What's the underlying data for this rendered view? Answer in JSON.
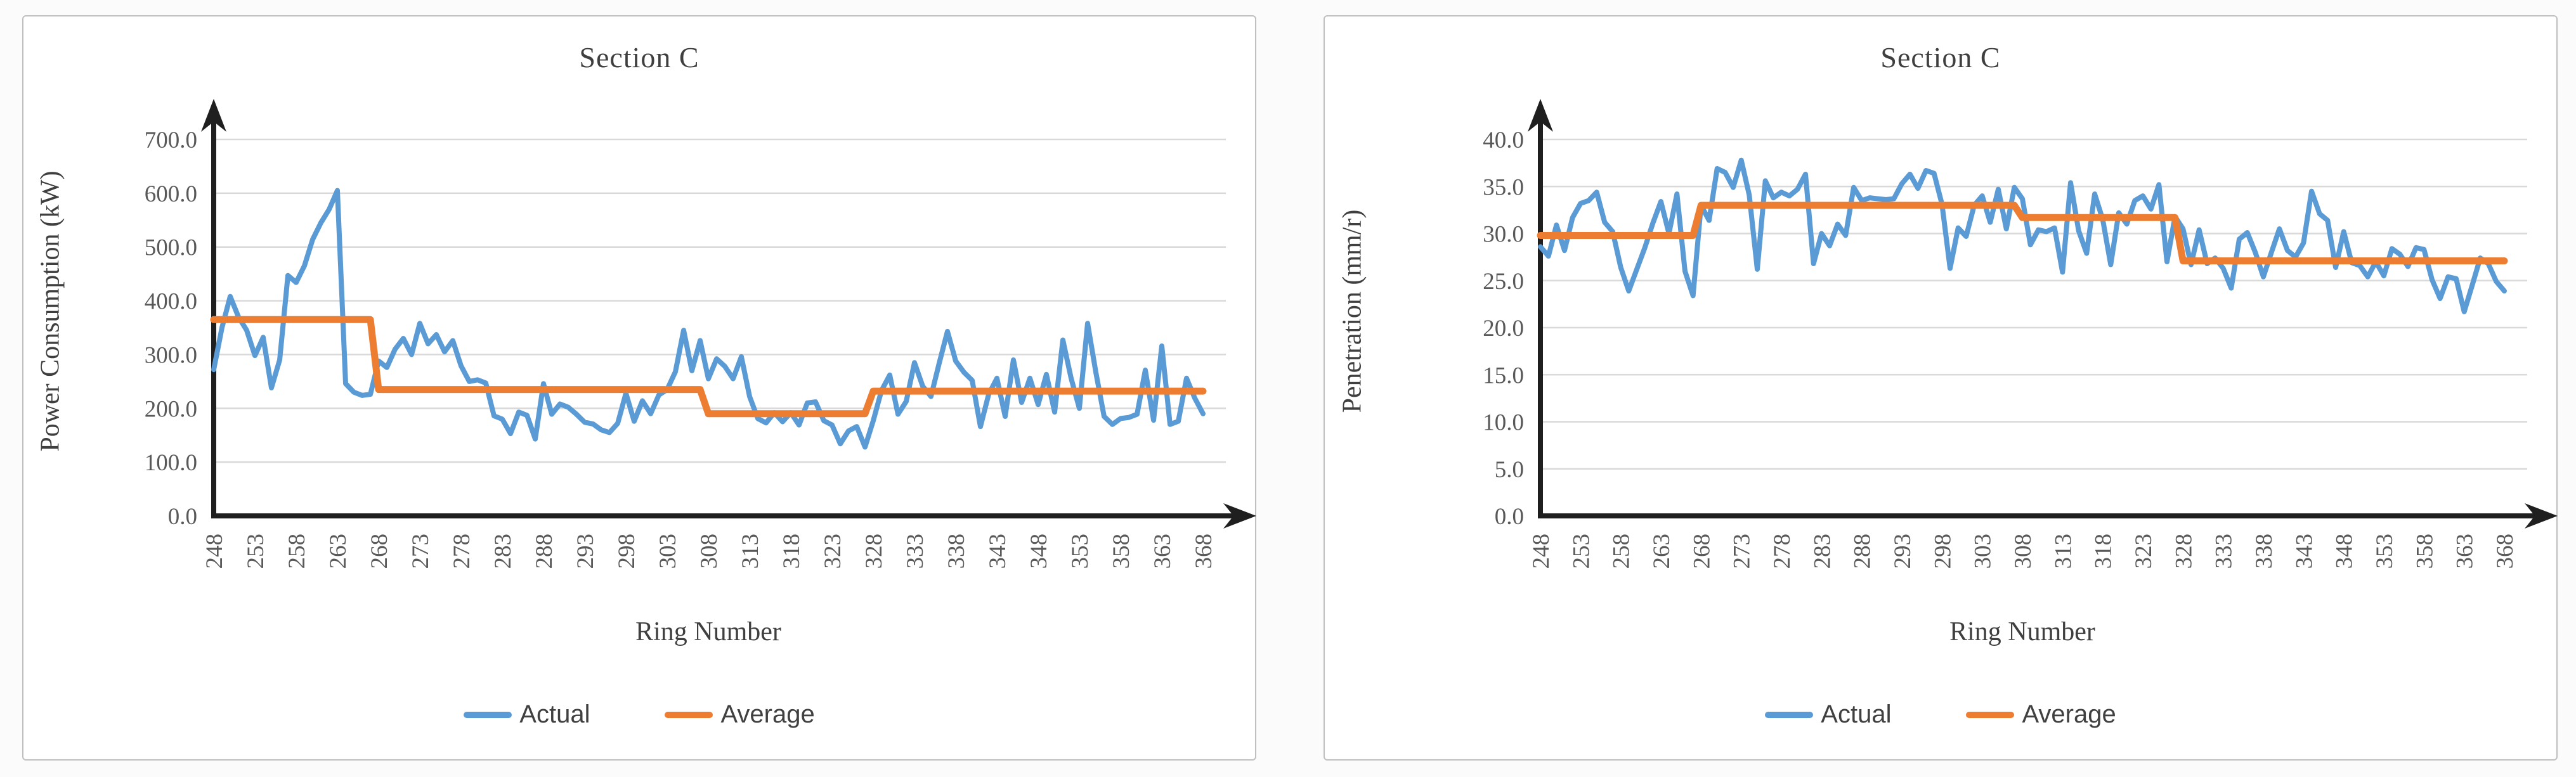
{
  "colors": {
    "actual": "#5B9BD5",
    "average": "#ED7D31",
    "gridline": "#D9D9D9",
    "axis": "#1F1F1F",
    "tick_text": "#595959",
    "title_text": "#3F3F3F",
    "panel_border": "#BFBFBF",
    "panel_background": "#FFFFFF"
  },
  "chart_data": [
    {
      "type": "line",
      "title": "Section C",
      "xlabel": "Ring Number",
      "ylabel": "Power Consumption (kW)",
      "grid": true,
      "legend_position": "bottom",
      "x_start": 248,
      "x_end": 368,
      "x_tick_step": 5,
      "x_tick_labels": [
        "248",
        "253",
        "258",
        "263",
        "268",
        "273",
        "278",
        "283",
        "288",
        "293",
        "298",
        "303",
        "308",
        "313",
        "318",
        "323",
        "328",
        "333",
        "338",
        "343",
        "348",
        "353",
        "358",
        "363",
        "368"
      ],
      "ylim": [
        0,
        700
      ],
      "y_tick_labels": [
        "0.0",
        "100.0",
        "200.0",
        "300.0",
        "400.0",
        "500.0",
        "600.0",
        "700.0"
      ],
      "series": [
        {
          "name": "Actual",
          "color": "#5B9BD5",
          "values": [
            272,
            350,
            408,
            370,
            345,
            298,
            332,
            238,
            290,
            447,
            434,
            465,
            514,
            545,
            570,
            605,
            246,
            230,
            224,
            226,
            288,
            276,
            310,
            330,
            300,
            358,
            320,
            337,
            305,
            326,
            279,
            250,
            253,
            247,
            186,
            180,
            153,
            193,
            187,
            143,
            246,
            189,
            208,
            202,
            189,
            174,
            171,
            160,
            155,
            172,
            228,
            176,
            214,
            190,
            225,
            235,
            268,
            345,
            270,
            326,
            255,
            292,
            278,
            255,
            296,
            222,
            181,
            173,
            192,
            175,
            192,
            169,
            210,
            212,
            177,
            169,
            134,
            158,
            166,
            128,
            177,
            233,
            262,
            189,
            213,
            285,
            241,
            222,
            284,
            343,
            288,
            267,
            252,
            166,
            226,
            256,
            185,
            290,
            211,
            256,
            207,
            263,
            193,
            327,
            256,
            200,
            358,
            267,
            185,
            170,
            181,
            183,
            189,
            271,
            178,
            316,
            170,
            176,
            256,
            219,
            190
          ]
        },
        {
          "name": "Average",
          "color": "#ED7D31",
          "segments": [
            {
              "start_ring": 248,
              "end_ring": 267,
              "value": 365
            },
            {
              "start_ring": 268,
              "end_ring": 307,
              "value": 235
            },
            {
              "start_ring": 308,
              "end_ring": 327,
              "value": 190
            },
            {
              "start_ring": 328,
              "end_ring": 368,
              "value": 232
            }
          ]
        }
      ]
    },
    {
      "type": "line",
      "title": "Section C",
      "xlabel": "Ring Number",
      "ylabel": "Penetration (mm/r)",
      "grid": true,
      "legend_position": "bottom",
      "x_start": 248,
      "x_end": 368,
      "x_tick_step": 5,
      "x_tick_labels": [
        "248",
        "253",
        "258",
        "263",
        "268",
        "273",
        "278",
        "283",
        "288",
        "293",
        "298",
        "303",
        "308",
        "313",
        "318",
        "323",
        "328",
        "333",
        "338",
        "343",
        "348",
        "353",
        "358",
        "363",
        "368"
      ],
      "ylim": [
        0,
        40
      ],
      "y_tick_labels": [
        "0.0",
        "5.0",
        "10.0",
        "15.0",
        "20.0",
        "25.0",
        "30.0",
        "35.0",
        "40.0"
      ],
      "series": [
        {
          "name": "Actual",
          "color": "#5B9BD5",
          "values": [
            28.6,
            27.6,
            30.9,
            28.2,
            31.7,
            33.2,
            33.5,
            34.4,
            31.2,
            30.2,
            26.4,
            23.9,
            26.2,
            28.5,
            31.1,
            33.4,
            30.0,
            34.2,
            26.0,
            23.4,
            33.0,
            31.4,
            36.9,
            36.5,
            34.9,
            37.8,
            34.1,
            26.2,
            35.6,
            33.8,
            34.4,
            34.0,
            34.7,
            36.3,
            26.8,
            30.0,
            28.7,
            31.0,
            29.8,
            34.9,
            33.5,
            33.8,
            33.7,
            33.6,
            33.7,
            35.3,
            36.3,
            34.8,
            36.7,
            36.4,
            33.1,
            26.3,
            30.6,
            29.7,
            33.0,
            34.0,
            31.2,
            34.7,
            30.5,
            34.9,
            33.7,
            28.8,
            30.4,
            30.2,
            30.6,
            25.9,
            35.4,
            30.3,
            27.9,
            34.2,
            31.5,
            26.7,
            32.2,
            31.0,
            33.5,
            34.0,
            32.6,
            35.2,
            27.0,
            31.8,
            30.5,
            26.7,
            30.4,
            26.8,
            27.4,
            26.3,
            24.2,
            29.4,
            30.1,
            28.0,
            25.4,
            28.0,
            30.5,
            28.2,
            27.5,
            29.0,
            34.5,
            32.1,
            31.4,
            26.4,
            30.2,
            26.9,
            26.6,
            25.4,
            27.0,
            25.5,
            28.4,
            27.8,
            26.5,
            28.5,
            28.3,
            25.1,
            23.1,
            25.4,
            25.2,
            21.7,
            24.5,
            27.4,
            26.8,
            24.9,
            23.9
          ]
        },
        {
          "name": "Average",
          "color": "#ED7D31",
          "segments": [
            {
              "start_ring": 248,
              "end_ring": 267,
              "value": 29.8
            },
            {
              "start_ring": 268,
              "end_ring": 307,
              "value": 33.0
            },
            {
              "start_ring": 308,
              "end_ring": 327,
              "value": 31.7
            },
            {
              "start_ring": 328,
              "end_ring": 368,
              "value": 27.1
            }
          ]
        }
      ]
    }
  ]
}
